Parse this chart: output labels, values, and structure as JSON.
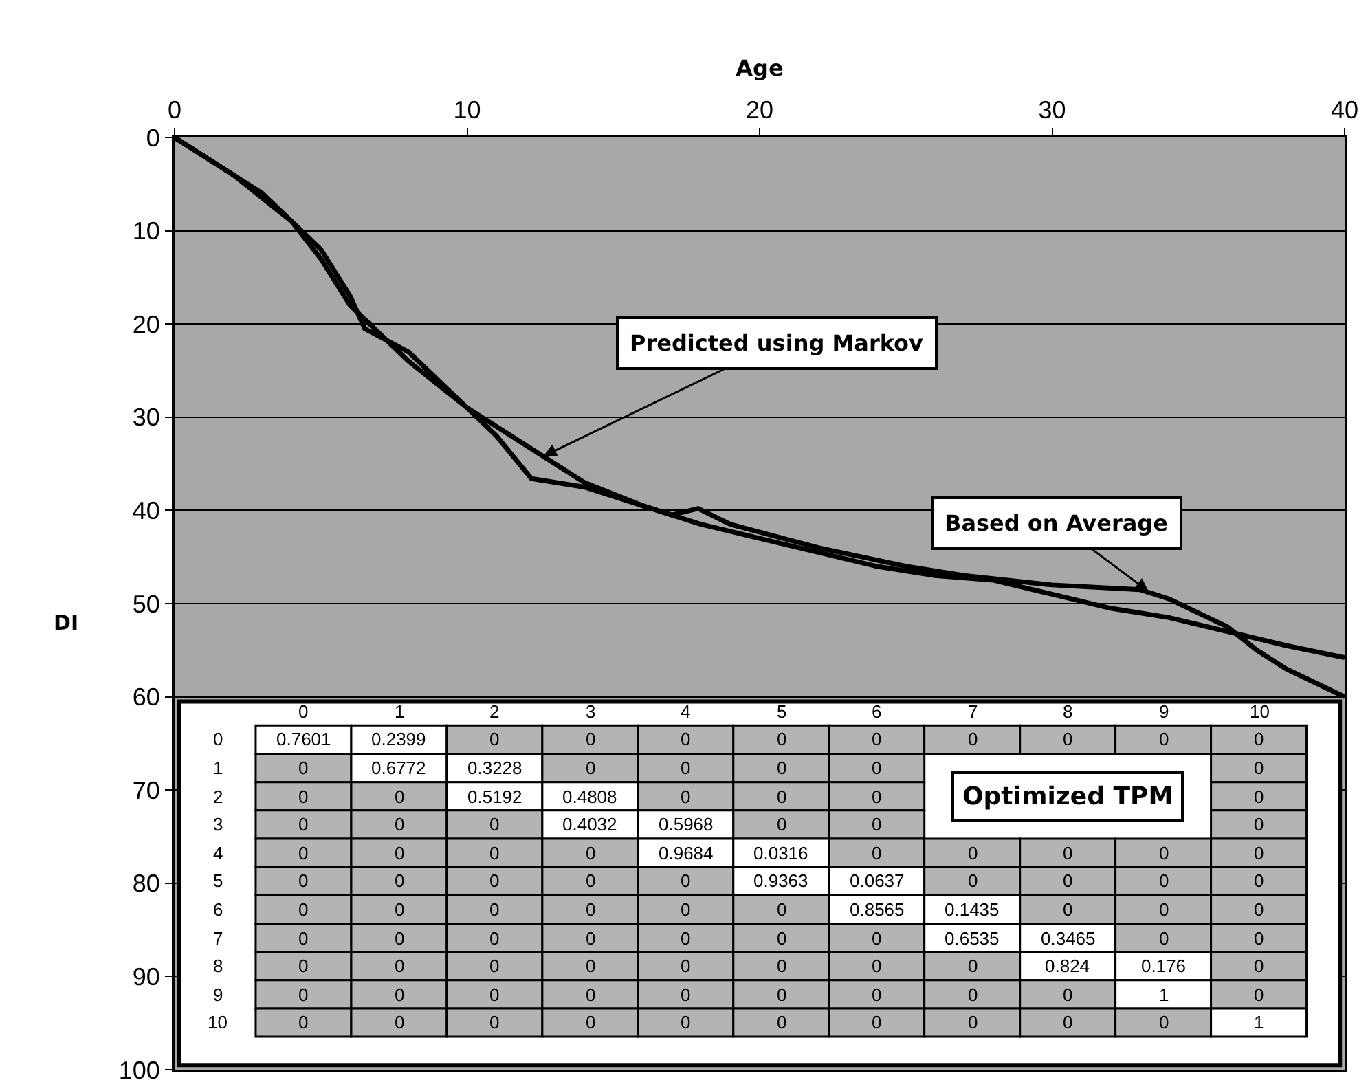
{
  "chart_data": [
    {
      "type": "line",
      "xlabel": "Age",
      "ylabel": "DI",
      "xlim": [
        0,
        40
      ],
      "xticks": [
        0,
        10,
        20,
        30,
        40
      ],
      "ylim": [
        100,
        0
      ],
      "yticks": [
        0,
        10,
        20,
        30,
        40,
        50,
        60,
        70,
        80,
        90,
        100
      ],
      "grid": "y",
      "series": [
        {
          "color": "#000000",
          "x": [
            0,
            2,
            4,
            5,
            6,
            8,
            10,
            12,
            14,
            16,
            18,
            20,
            22,
            24,
            26,
            28,
            30,
            32,
            34,
            36,
            38,
            40
          ],
          "values": [
            0,
            4,
            9,
            13,
            18,
            24,
            29,
            33,
            37,
            39.5,
            41.5,
            43,
            44.5,
            46,
            47,
            47.5,
            49,
            50.5,
            51.5,
            53,
            54.5,
            55.8
          ]
        },
        {
          "color": "#000000",
          "x": [
            0,
            3,
            4,
            5,
            6,
            6.5,
            8,
            10,
            11,
            12.2,
            14,
            16,
            17,
            17.9,
            19,
            22,
            25,
            27,
            30,
            33,
            34,
            35,
            36,
            37,
            38,
            39,
            40
          ],
          "values": [
            0,
            6,
            9,
            12,
            17,
            20.5,
            23,
            29,
            32,
            36.6,
            37.5,
            39.5,
            40.5,
            39.8,
            41.5,
            44,
            46,
            47,
            48,
            48.5,
            49.5,
            51,
            52.5,
            55,
            57,
            58.5,
            60
          ]
        }
      ],
      "annotations": [
        {
          "text": "Predicted using Markov",
          "x": 12.6,
          "y": 34.2
        },
        {
          "text": "Based on Average",
          "x": 33.3,
          "y": 48.7
        }
      ]
    },
    {
      "type": "heatmap",
      "categories": [
        "0",
        "1",
        "2",
        "3",
        "4",
        "5",
        "6",
        "7",
        "8",
        "9",
        "10"
      ],
      "y_categories": [
        "0",
        "1",
        "2",
        "3",
        "4",
        "5",
        "6",
        "7",
        "8",
        "9",
        "10"
      ],
      "cells": [
        [
          0.7601,
          0.2399,
          0,
          0,
          0,
          0,
          0,
          0,
          0,
          0,
          0
        ],
        [
          0,
          0.6772,
          0.3228,
          0,
          0,
          0,
          0,
          null,
          null,
          null,
          0
        ],
        [
          0,
          0,
          0.5192,
          0.4808,
          0,
          0,
          0,
          null,
          null,
          null,
          0
        ],
        [
          0,
          0,
          0,
          0.4032,
          0.5968,
          0,
          0,
          null,
          null,
          null,
          0
        ],
        [
          0,
          0,
          0,
          0,
          0.9684,
          0.0316,
          0,
          0,
          0,
          0,
          0
        ],
        [
          0,
          0,
          0,
          0,
          0,
          0.9363,
          0.0637,
          0,
          0,
          0,
          0
        ],
        [
          0,
          0,
          0,
          0,
          0,
          0,
          0.8565,
          0.1435,
          0,
          0,
          0
        ],
        [
          0,
          0,
          0,
          0,
          0,
          0,
          0,
          0.6535,
          0.3465,
          0,
          0
        ],
        [
          0,
          0,
          0,
          0,
          0,
          0,
          0,
          0,
          0.824,
          0.176,
          0
        ],
        [
          0,
          0,
          0,
          0,
          0,
          0,
          0,
          0,
          0,
          1,
          0
        ],
        [
          0,
          0,
          0,
          0,
          0,
          0,
          0,
          0,
          0,
          0,
          1
        ]
      ],
      "data_labels": true,
      "annotations": [
        "Optimized TPM"
      ]
    }
  ]
}
